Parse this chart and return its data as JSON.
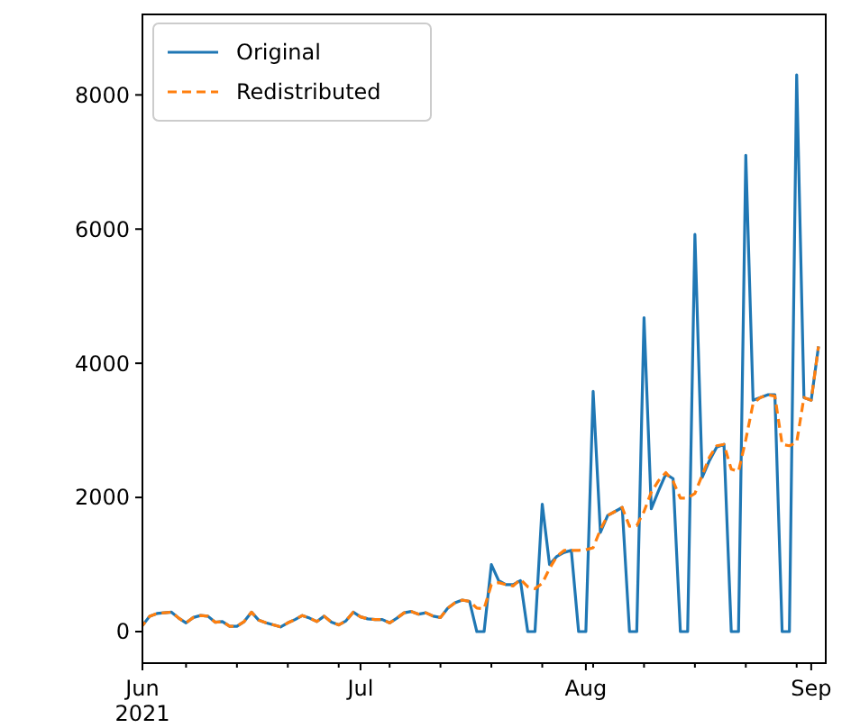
{
  "chart_data": {
    "type": "line",
    "x": [
      "2021-06-01",
      "2021-06-02",
      "2021-06-03",
      "2021-06-04",
      "2021-06-05",
      "2021-06-06",
      "2021-06-07",
      "2021-06-08",
      "2021-06-09",
      "2021-06-10",
      "2021-06-11",
      "2021-06-12",
      "2021-06-13",
      "2021-06-14",
      "2021-06-15",
      "2021-06-16",
      "2021-06-17",
      "2021-06-18",
      "2021-06-19",
      "2021-06-20",
      "2021-06-21",
      "2021-06-22",
      "2021-06-23",
      "2021-06-24",
      "2021-06-25",
      "2021-06-26",
      "2021-06-27",
      "2021-06-28",
      "2021-06-29",
      "2021-06-30",
      "2021-07-01",
      "2021-07-02",
      "2021-07-03",
      "2021-07-04",
      "2021-07-05",
      "2021-07-06",
      "2021-07-07",
      "2021-07-08",
      "2021-07-09",
      "2021-07-10",
      "2021-07-11",
      "2021-07-12",
      "2021-07-13",
      "2021-07-14",
      "2021-07-15",
      "2021-07-16",
      "2021-07-17",
      "2021-07-18",
      "2021-07-19",
      "2021-07-20",
      "2021-07-21",
      "2021-07-22",
      "2021-07-23",
      "2021-07-24",
      "2021-07-25",
      "2021-07-26",
      "2021-07-27",
      "2021-07-28",
      "2021-07-29",
      "2021-07-30",
      "2021-07-31",
      "2021-08-01",
      "2021-08-02",
      "2021-08-03",
      "2021-08-04",
      "2021-08-05",
      "2021-08-06",
      "2021-08-07",
      "2021-08-08",
      "2021-08-09",
      "2021-08-10",
      "2021-08-11",
      "2021-08-12",
      "2021-08-13",
      "2021-08-14",
      "2021-08-15",
      "2021-08-16",
      "2021-08-17",
      "2021-08-18",
      "2021-08-19",
      "2021-08-20",
      "2021-08-21",
      "2021-08-22",
      "2021-08-23",
      "2021-08-24",
      "2021-08-25",
      "2021-08-26",
      "2021-08-27",
      "2021-08-28",
      "2021-08-29",
      "2021-08-30",
      "2021-08-31",
      "2021-09-01",
      "2021-09-02"
    ],
    "series": [
      {
        "name": "Original",
        "color": "#1f77b4",
        "line_style": "solid",
        "values": [
          90,
          230,
          270,
          280,
          290,
          200,
          130,
          210,
          240,
          230,
          140,
          150,
          80,
          80,
          150,
          290,
          170,
          130,
          100,
          70,
          130,
          180,
          240,
          200,
          150,
          230,
          140,
          100,
          160,
          290,
          220,
          190,
          180,
          180,
          130,
          200,
          280,
          300,
          260,
          280,
          230,
          210,
          350,
          430,
          470,
          450,
          0,
          0,
          1000,
          760,
          700,
          700,
          760,
          0,
          0,
          1900,
          1000,
          1120,
          1180,
          1210,
          0,
          0,
          3580,
          1480,
          1730,
          1790,
          1850,
          0,
          0,
          4680,
          1830,
          2100,
          2350,
          2280,
          0,
          0,
          5920,
          2300,
          2550,
          2750,
          2790,
          0,
          0,
          7100,
          3450,
          3490,
          3530,
          3530,
          0,
          0,
          8300,
          3490,
          3450,
          4250
        ]
      },
      {
        "name": "Redistributed",
        "color": "#ff7f0e",
        "line_style": "dashed",
        "values": [
          90,
          230,
          270,
          280,
          290,
          200,
          130,
          210,
          240,
          230,
          140,
          150,
          80,
          80,
          150,
          290,
          170,
          130,
          100,
          70,
          130,
          180,
          240,
          200,
          150,
          230,
          140,
          100,
          160,
          290,
          220,
          190,
          180,
          180,
          130,
          200,
          280,
          300,
          260,
          280,
          230,
          210,
          350,
          430,
          470,
          450,
          350,
          340,
          700,
          730,
          700,
          680,
          780,
          670,
          640,
          720,
          940,
          1120,
          1210,
          1210,
          1210,
          1220,
          1250,
          1520,
          1730,
          1790,
          1850,
          1570,
          1580,
          1790,
          2080,
          2250,
          2370,
          2240,
          1990,
          1990,
          2060,
          2330,
          2600,
          2770,
          2790,
          2420,
          2390,
          2860,
          3400,
          3490,
          3530,
          3510,
          2790,
          2770,
          2820,
          3490,
          3450,
          4250
        ]
      }
    ],
    "xlim": [
      "2021-06-01",
      "2021-09-03"
    ],
    "xticks": [
      {
        "value": "2021-06-01",
        "label": "Jun\n2021"
      },
      {
        "value": "2021-06-07",
        "label": null
      },
      {
        "value": "2021-06-14",
        "label": null
      },
      {
        "value": "2021-06-21",
        "label": null
      },
      {
        "value": "2021-06-28",
        "label": null
      },
      {
        "value": "2021-07-01",
        "label": "Jul"
      },
      {
        "value": "2021-07-05",
        "label": null
      },
      {
        "value": "2021-07-12",
        "label": null
      },
      {
        "value": "2021-07-19",
        "label": null
      },
      {
        "value": "2021-07-26",
        "label": null
      },
      {
        "value": "2021-08-01",
        "label": "Aug"
      },
      {
        "value": "2021-08-02",
        "label": null
      },
      {
        "value": "2021-08-09",
        "label": null
      },
      {
        "value": "2021-08-16",
        "label": null
      },
      {
        "value": "2021-08-23",
        "label": null
      },
      {
        "value": "2021-08-30",
        "label": null
      },
      {
        "value": "2021-09-01",
        "label": "Sep"
      }
    ],
    "ylim": [
      -470,
      9200
    ],
    "yticks": [
      0,
      2000,
      4000,
      6000,
      8000
    ],
    "grid": false,
    "legend": "top left",
    "marker": "none"
  }
}
